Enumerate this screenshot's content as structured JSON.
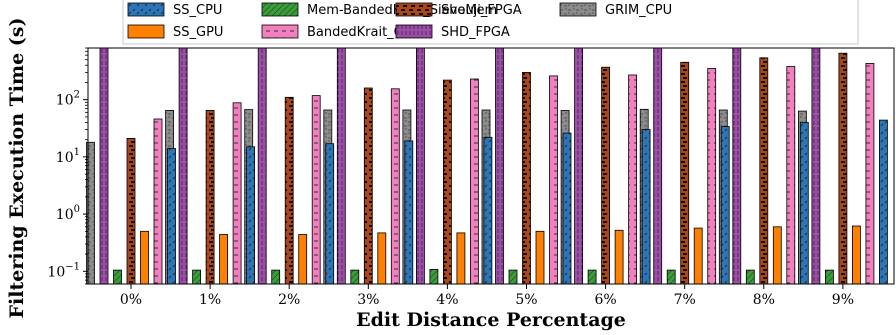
{
  "chart_data": {
    "type": "bar",
    "yscale": "log",
    "ylim": [
      0.06,
      800
    ],
    "xlabel": "Edit Distance Percentage",
    "ylabel": "Filtering Execution Time (s)",
    "grid": false,
    "legend_position": "top",
    "categories": [
      "0%",
      "1%",
      "2%",
      "3%",
      "4%",
      "5%",
      "6%",
      "7%",
      "8%",
      "9%"
    ],
    "yticks": [
      {
        "value": 0.1,
        "base": "10",
        "exp": "−1"
      },
      {
        "value": 1,
        "base": "10",
        "exp": "0"
      },
      {
        "value": 10,
        "base": "10",
        "exp": "1"
      },
      {
        "value": 100,
        "base": "10",
        "exp": "2"
      }
    ],
    "series": [
      {
        "name": "GRIM_CPU",
        "color": "#8c8c8c",
        "values": [
          18,
          65,
          67,
          66,
          66,
          66,
          65,
          68,
          66,
          63
        ]
      },
      {
        "name": "SHD_FPGA",
        "color": "#9b4fa6",
        "values": [
          800,
          800,
          800,
          800,
          800,
          800,
          800,
          800,
          800,
          800
        ]
      },
      {
        "name": "Mem-BandedKrait_SieveMem",
        "color": "#3c9c3c",
        "values": [
          0.105,
          0.105,
          0.105,
          0.105,
          0.108,
          0.105,
          0.105,
          0.105,
          0.105,
          0.105
        ]
      },
      {
        "name": "Shouji_FPGA",
        "color": "#a9471c",
        "values": [
          21,
          65,
          110,
          160,
          220,
          300,
          370,
          450,
          540,
          650
        ]
      },
      {
        "name": "SS_GPU",
        "color": "#ff8000",
        "values": [
          0.5,
          0.44,
          0.44,
          0.47,
          0.47,
          0.5,
          0.52,
          0.57,
          0.6,
          0.62
        ]
      },
      {
        "name": "BandedKrait_CPU",
        "color": "#f27fbf",
        "values": [
          46,
          88,
          118,
          155,
          230,
          260,
          270,
          350,
          380,
          430
        ]
      },
      {
        "name": "SS_CPU",
        "color": "#2e75b6",
        "values": [
          14,
          15,
          17,
          19,
          22,
          26,
          30,
          34,
          40,
          44
        ]
      }
    ],
    "legend_order": [
      "SS_CPU",
      "SS_GPU",
      "Mem-BandedKrait_SieveMem",
      "BandedKrait_CPU",
      "Shouji_FPGA",
      "SHD_FPGA",
      "GRIM_CPU"
    ]
  }
}
